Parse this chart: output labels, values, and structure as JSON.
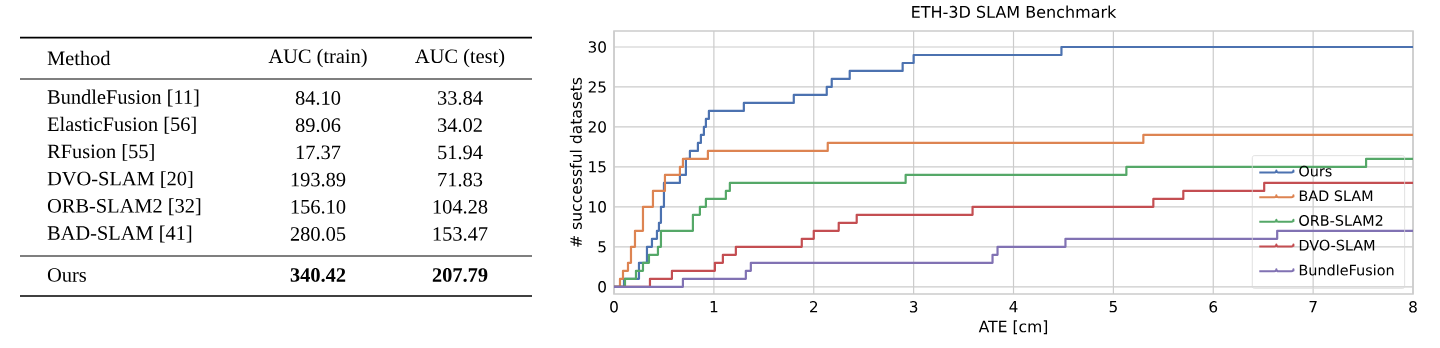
{
  "chart_data": [
    {
      "type": "other",
      "xlabel": "Method",
      "categories": [
        "BundleFusion [11]",
        "ElasticFusion [56]",
        "RFusion [55]",
        "DVO-SLAM [20]",
        "ORB-SLAM2 [32]",
        "BAD-SLAM [41]",
        "Ours"
      ],
      "series": [
        {
          "name": "AUC (train)",
          "values": [
            84.1,
            89.06,
            17.37,
            193.89,
            156.1,
            280.05,
            340.42
          ],
          "value_labels": [
            "84.10",
            "89.06",
            "17.37",
            "193.89",
            "156.10",
            "280.05",
            "340.42"
          ]
        },
        {
          "name": "AUC (test)",
          "values": [
            33.84,
            34.02,
            51.94,
            71.83,
            104.28,
            153.47,
            207.79
          ],
          "value_labels": [
            "33.84",
            "34.02",
            "51.94",
            "71.83",
            "104.28",
            "153.47",
            "207.79"
          ]
        }
      ]
    },
    {
      "type": "step",
      "title": "ETH-3D SLAM Benchmark",
      "xlabel": "ATE [cm]",
      "ylabel": "# successful datasets",
      "xlim": [
        0,
        8
      ],
      "ylim": [
        -0.9,
        32
      ],
      "xticks": [
        0,
        1,
        2,
        3,
        4,
        5,
        6,
        7,
        8
      ],
      "yticks": [
        0,
        5,
        10,
        15,
        20,
        25,
        30
      ],
      "grid": true,
      "legend": "bottom right",
      "series": [
        {
          "name": "Ours",
          "color": "#4c72b0",
          "x": [
            0,
            0.1,
            0.25,
            0.33,
            0.38,
            0.43,
            0.45,
            0.47,
            0.5,
            0.66,
            0.72,
            0.76,
            0.84,
            0.87,
            0.9,
            0.92,
            0.95,
            1.3,
            1.8,
            2.13,
            2.18,
            2.36,
            2.89,
            3.0,
            4.48,
            8
          ],
          "values": [
            0,
            1,
            3,
            5,
            6,
            7,
            8,
            10,
            13,
            14,
            16,
            17,
            18,
            19,
            20,
            21,
            22,
            23,
            24,
            25,
            26,
            27,
            28,
            29,
            30,
            30
          ]
        },
        {
          "name": "BAD SLAM",
          "color": "#dd8452",
          "x": [
            0,
            0.06,
            0.09,
            0.14,
            0.17,
            0.21,
            0.29,
            0.39,
            0.51,
            0.66,
            0.69,
            0.94,
            2.14,
            5.3,
            8
          ],
          "values": [
            0,
            1,
            2,
            3,
            5,
            7,
            10,
            12,
            14,
            15,
            16,
            17,
            18,
            19,
            19
          ]
        },
        {
          "name": "ORB-SLAM2",
          "color": "#55a868",
          "x": [
            0,
            0.11,
            0.22,
            0.29,
            0.35,
            0.44,
            0.47,
            0.79,
            0.86,
            0.92,
            1.12,
            1.16,
            2.92,
            5.13,
            7.53,
            8
          ],
          "values": [
            0,
            1,
            2,
            3,
            4,
            5,
            7,
            9,
            10,
            11,
            12,
            13,
            14,
            15,
            16,
            16
          ]
        },
        {
          "name": "DVO-SLAM",
          "color": "#c44e52",
          "x": [
            0,
            0.36,
            0.58,
            1.01,
            1.09,
            1.22,
            1.88,
            2.0,
            2.25,
            2.43,
            3.59,
            5.4,
            5.7,
            6.51,
            8
          ],
          "values": [
            0,
            1,
            2,
            3,
            4,
            5,
            6,
            7,
            8,
            9,
            10,
            11,
            12,
            13,
            13
          ]
        },
        {
          "name": "BundleFusion",
          "color": "#8172b3",
          "x": [
            0,
            0.69,
            1.32,
            1.37,
            3.79,
            3.84,
            4.52,
            6.64,
            8
          ],
          "values": [
            0,
            1,
            2,
            3,
            4,
            5,
            6,
            7,
            7
          ]
        }
      ]
    }
  ]
}
